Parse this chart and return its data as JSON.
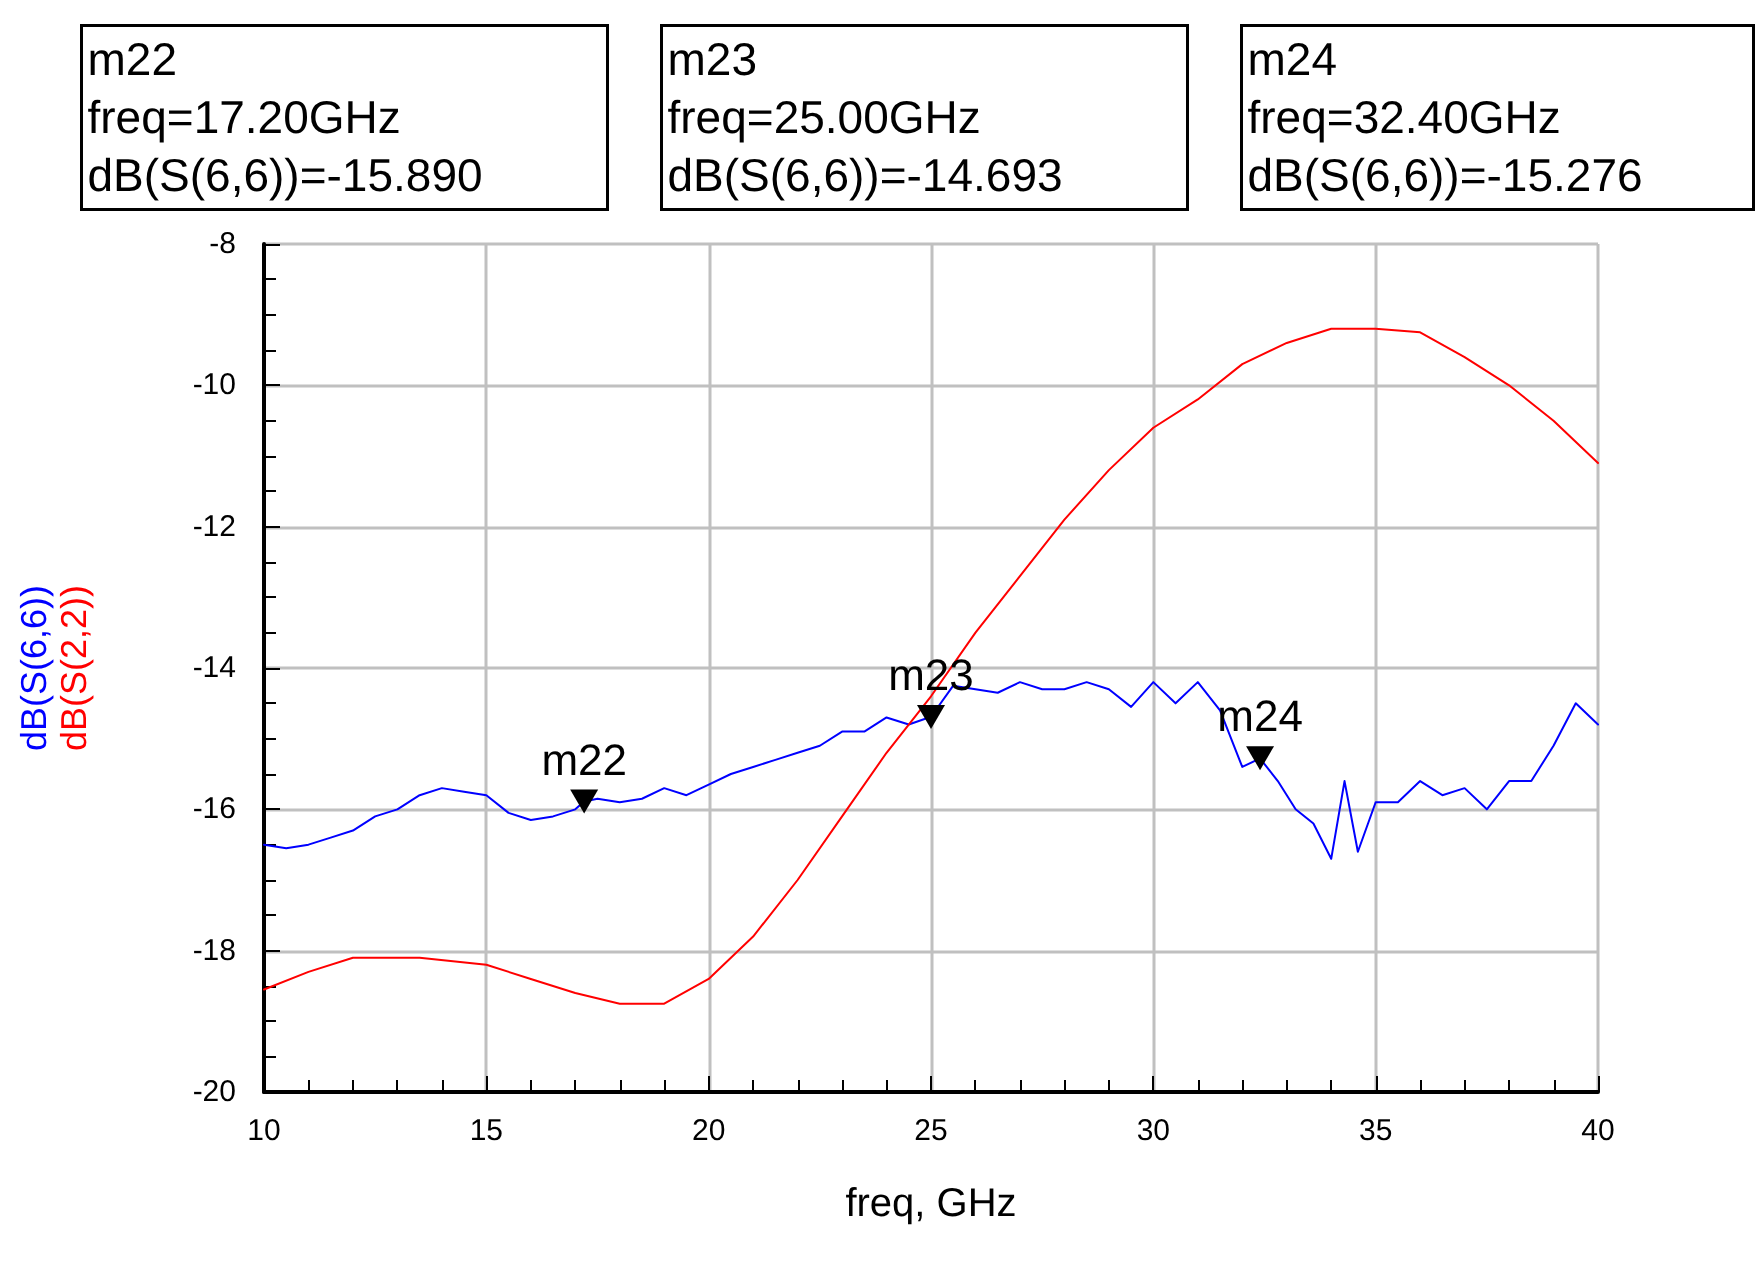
{
  "chart_data": {
    "type": "line",
    "xlabel": "freq, GHz",
    "xlim": [
      10,
      40
    ],
    "xticks": [
      10,
      15,
      20,
      25,
      30,
      35,
      40
    ],
    "ylim": [
      -20,
      -8
    ],
    "yticks": [
      -20,
      -18,
      -16,
      -14,
      -12,
      -10,
      -8
    ],
    "grid": true,
    "marker": "none",
    "line_style": "solid",
    "series": [
      {
        "name": "dB(S(6,6))",
        "color": "#0000ff",
        "x": [
          10,
          10.5,
          11,
          11.5,
          12,
          12.5,
          13,
          13.5,
          14,
          14.5,
          15,
          15.5,
          16,
          16.5,
          17,
          17.2,
          17.5,
          18,
          18.5,
          19,
          19.5,
          20,
          20.5,
          21,
          21.5,
          22,
          22.5,
          23,
          23.5,
          24,
          24.5,
          25,
          25.5,
          26,
          26.5,
          27,
          27.5,
          28,
          28.5,
          29,
          29.5,
          30,
          30.5,
          31,
          31.5,
          32,
          32.4,
          32.8,
          33.2,
          33.6,
          34,
          34.3,
          34.6,
          35,
          35.5,
          36,
          36.5,
          37,
          37.5,
          38,
          38.5,
          39,
          39.5,
          40
        ],
        "values": [
          -16.5,
          -16.55,
          -16.5,
          -16.4,
          -16.3,
          -16.1,
          -16.0,
          -15.8,
          -15.7,
          -15.75,
          -15.8,
          -16.05,
          -16.15,
          -16.1,
          -16.0,
          -15.89,
          -15.85,
          -15.9,
          -15.85,
          -15.7,
          -15.8,
          -15.65,
          -15.5,
          -15.4,
          -15.3,
          -15.2,
          -15.1,
          -14.9,
          -14.9,
          -14.7,
          -14.8,
          -14.69,
          -14.25,
          -14.3,
          -14.35,
          -14.2,
          -14.3,
          -14.3,
          -14.2,
          -14.3,
          -14.55,
          -14.2,
          -14.5,
          -14.2,
          -14.6,
          -15.4,
          -15.28,
          -15.6,
          -16.0,
          -16.2,
          -16.7,
          -15.6,
          -16.6,
          -15.9,
          -15.9,
          -15.6,
          -15.8,
          -15.7,
          -16.0,
          -15.6,
          -15.6,
          -15.1,
          -14.5,
          -14.8
        ]
      },
      {
        "name": "dB(S(2,2))",
        "color": "#ff0000",
        "x": [
          10,
          11,
          12,
          13.5,
          15,
          16,
          17,
          18,
          19,
          20,
          21,
          22,
          23,
          24,
          25,
          26,
          27,
          28,
          29,
          30,
          31,
          32,
          33,
          34,
          35,
          36,
          37,
          38,
          39,
          40
        ],
        "values": [
          -18.55,
          -18.3,
          -18.1,
          -18.1,
          -18.2,
          -18.4,
          -18.6,
          -18.75,
          -18.75,
          -18.4,
          -17.8,
          -17.0,
          -16.1,
          -15.2,
          -14.4,
          -13.5,
          -12.7,
          -11.9,
          -11.2,
          -10.6,
          -10.2,
          -9.7,
          -9.4,
          -9.2,
          -9.2,
          -9.25,
          -9.6,
          -10.0,
          -10.5,
          -11.1
        ]
      }
    ],
    "annotations": [
      "m22\nfreq=17.20GHz\ndB(S(6,6))=-15.890",
      "m23\nfreq=25.00GHz\ndB(S(6,6))=-14.693",
      "m24\nfreq=32.40GHz\ndB(S(6,6))=-15.276",
      {
        "text": "m22",
        "x": 17.2,
        "y": -15.89
      },
      {
        "text": "m23",
        "x": 25,
        "y": -14.693
      },
      {
        "text": "m24",
        "x": 32.4,
        "y": -15.276
      }
    ]
  }
}
